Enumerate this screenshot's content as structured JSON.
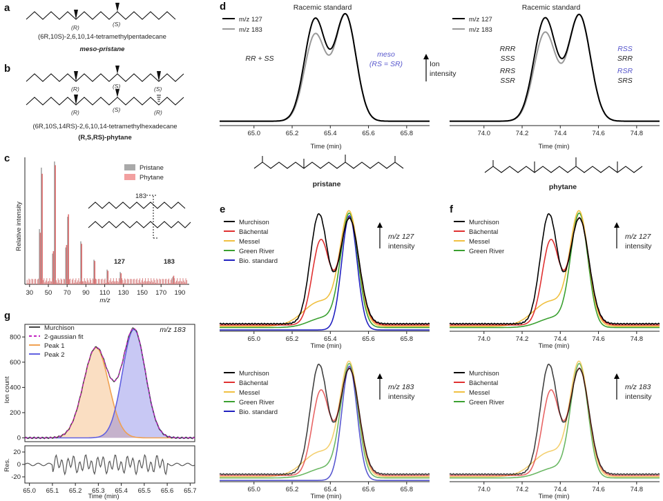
{
  "panel_labels": {
    "a": "a",
    "b": "b",
    "c": "c",
    "d": "d",
    "e": "e",
    "f": "f",
    "g": "g"
  },
  "panel_a": {
    "stereo_labels": [
      "(R)",
      "(S)"
    ],
    "name_line": "(6R,10S)-2,6,10,14-tetramethylpentadecane",
    "common_name": "meso-pristane"
  },
  "panel_b": {
    "stereo_labels_top": [
      "(R)",
      "(S)",
      "(S)"
    ],
    "stereo_labels_bottom": [
      "(R)",
      "(S)",
      "(R)"
    ],
    "name_line": "(6R,10S,14RS)-2,6,10,14-tetramethylhexadecane",
    "common_name": "(R,S,RS)-phytane"
  },
  "panel_c": {
    "ylabel": "Relative intensity",
    "xlabel": "m/z",
    "legend": [
      "Pristane",
      "Phytane"
    ],
    "legend_colors": [
      "#a9a9a9",
      "#f2a0a0"
    ],
    "annot_127": "127",
    "annot_183": "183",
    "fragment_label": "183"
  },
  "panel_d": {
    "title_left": "Racemic standard",
    "title_right": "Racemic standard",
    "legend": [
      "m/z 127",
      "m/z 183"
    ],
    "left_annot1": "RR + SS",
    "left_annot_meso1": "meso",
    "left_annot_meso2": "(RS = SR)",
    "right_black": [
      "RRR",
      "SSS",
      "RRS",
      "SSR"
    ],
    "right_blue": [
      "RSS",
      "SRR",
      "RSR",
      "SRS"
    ],
    "ion_label": [
      "Ion",
      "intensity"
    ],
    "xlabel": "Time (min)",
    "pristane_label": "pristane",
    "phytane_label": "phytane"
  },
  "panel_e": {
    "legend_top": [
      "Murchison",
      "Bächental",
      "Messel",
      "Green River",
      "Bio. standard"
    ],
    "mz_top": "m/z 127",
    "mz_bottom": "m/z 183",
    "intensity": "intensity",
    "xlabel": "Time (min)"
  },
  "panel_f": {
    "legend": [
      "Murchison",
      "Bächental",
      "Messel",
      "Green River"
    ],
    "mz_top": "m/z 127",
    "mz_bottom": "m/z 183",
    "intensity": "intensity",
    "xlabel": "Time (min)"
  },
  "panel_g": {
    "title": "m/z 183",
    "legend": [
      "Murchison",
      "2-gaussian fit",
      "Peak 1",
      "Peak 2"
    ],
    "ylabel": "Ion count",
    "reslabel": "Res.",
    "xlabel": "Time (min)"
  },
  "colors": {
    "murchison": "#000000",
    "bachental": "#e03030",
    "messel": "#f0c040",
    "greenriver": "#3aa030",
    "bio": "#2020c0",
    "peak1": "#f0a050",
    "peak2": "#6060e0",
    "fit": "#c020c0",
    "meso_blue": "#5555cc"
  },
  "chart_data": [
    {
      "id": "c",
      "type": "bar",
      "title": "",
      "xlabel": "m/z",
      "ylabel": "Relative intensity",
      "x_ticks": [
        30,
        50,
        70,
        90,
        110,
        130,
        150,
        170,
        190
      ],
      "xlim": [
        25,
        200
      ],
      "series": [
        {
          "name": "Pristane",
          "x": [
            41,
            43,
            55,
            57,
            69,
            71,
            85,
            99,
            113,
            127,
            183
          ],
          "values": [
            0.45,
            0.95,
            0.25,
            1.0,
            0.3,
            0.55,
            0.35,
            0.2,
            0.12,
            0.1,
            0.06
          ]
        },
        {
          "name": "Phytane",
          "x": [
            41,
            43,
            55,
            57,
            69,
            71,
            85,
            99,
            113,
            127,
            183
          ],
          "values": [
            0.42,
            0.9,
            0.27,
            0.97,
            0.32,
            0.57,
            0.33,
            0.19,
            0.11,
            0.09,
            0.07
          ]
        }
      ]
    },
    {
      "id": "d-left",
      "type": "line",
      "title": "Racemic standard",
      "xlabel": "Time (min)",
      "x_ticks": [
        65.0,
        65.2,
        65.4,
        65.6,
        65.8
      ],
      "xlim": [
        64.82,
        65.92
      ],
      "series": [
        {
          "name": "m/z 127",
          "peaks": [
            [
              65.32,
              0.96
            ],
            [
              65.48,
              1.0
            ]
          ]
        },
        {
          "name": "m/z 183",
          "peaks": [
            [
              65.32,
              0.82
            ],
            [
              65.48,
              1.0
            ]
          ]
        }
      ]
    },
    {
      "id": "d-right",
      "type": "line",
      "title": "Racemic standard",
      "xlabel": "Time (min)",
      "x_ticks": [
        74.0,
        74.2,
        74.4,
        74.6,
        74.8
      ],
      "xlim": [
        73.82,
        74.92
      ],
      "series": [
        {
          "name": "m/z 127",
          "peaks": [
            [
              74.32,
              0.96
            ],
            [
              74.5,
              1.0
            ]
          ]
        },
        {
          "name": "m/z 183",
          "peaks": [
            [
              74.32,
              0.84
            ],
            [
              74.5,
              1.0
            ]
          ]
        }
      ]
    },
    {
      "id": "g",
      "type": "line",
      "title": "m/z 183",
      "xlabel": "Time (min)",
      "ylabel": "Ion count",
      "x_ticks": [
        65.0,
        65.1,
        65.2,
        65.3,
        65.4,
        65.5,
        65.6,
        65.7
      ],
      "y_ticks": [
        0,
        200,
        400,
        600,
        800
      ],
      "ylim": [
        -30,
        900
      ],
      "series": [
        {
          "name": "Peak 1",
          "center": 65.29,
          "height": 715
        },
        {
          "name": "Peak 2",
          "center": 65.455,
          "height": 860
        }
      ],
      "res_ticks": [
        -20,
        0,
        20
      ]
    }
  ]
}
